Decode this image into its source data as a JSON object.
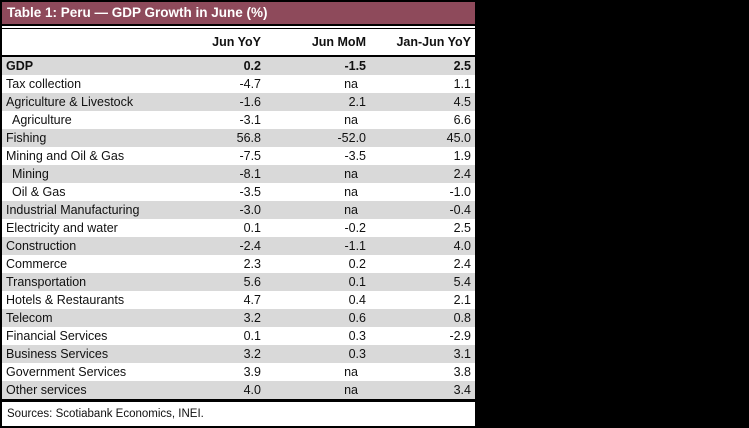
{
  "chart_data": {
    "type": "table",
    "title": "Table 1: Peru — GDP Growth in June (%)",
    "columns": [
      "",
      "Jun YoY",
      "Jun MoM",
      "Jan-Jun YoY"
    ],
    "rows": [
      {
        "label": "GDP",
        "bold": true,
        "indent": false,
        "values": [
          "0.2",
          "-1.5",
          "2.5"
        ]
      },
      {
        "label": "Tax collection",
        "bold": false,
        "indent": false,
        "values": [
          "-4.7",
          "na",
          "1.1"
        ]
      },
      {
        "label": "Agriculture & Livestock",
        "bold": false,
        "indent": false,
        "values": [
          "-1.6",
          "2.1",
          "4.5"
        ]
      },
      {
        "label": "Agriculture",
        "bold": false,
        "indent": true,
        "values": [
          "-3.1",
          "na",
          "6.6"
        ]
      },
      {
        "label": "Fishing",
        "bold": false,
        "indent": false,
        "values": [
          "56.8",
          "-52.0",
          "45.0"
        ]
      },
      {
        "label": "Mining and Oil & Gas",
        "bold": false,
        "indent": false,
        "values": [
          "-7.5",
          "-3.5",
          "1.9"
        ]
      },
      {
        "label": "Mining",
        "bold": false,
        "indent": true,
        "values": [
          "-8.1",
          "na",
          "2.4"
        ]
      },
      {
        "label": "Oil & Gas",
        "bold": false,
        "indent": true,
        "values": [
          "-3.5",
          "na",
          "-1.0"
        ]
      },
      {
        "label": "Industrial Manufacturing",
        "bold": false,
        "indent": false,
        "values": [
          "-3.0",
          "na",
          "-0.4"
        ]
      },
      {
        "label": "Electricity and water",
        "bold": false,
        "indent": false,
        "values": [
          "0.1",
          "-0.2",
          "2.5"
        ]
      },
      {
        "label": "Construction",
        "bold": false,
        "indent": false,
        "values": [
          "-2.4",
          "-1.1",
          "4.0"
        ]
      },
      {
        "label": "Commerce",
        "bold": false,
        "indent": false,
        "values": [
          "2.3",
          "0.2",
          "2.4"
        ]
      },
      {
        "label": "Transportation",
        "bold": false,
        "indent": false,
        "values": [
          "5.6",
          "0.1",
          "5.4"
        ]
      },
      {
        "label": "Hotels & Restaurants",
        "bold": false,
        "indent": false,
        "values": [
          "4.7",
          "0.4",
          "2.1"
        ]
      },
      {
        "label": "Telecom",
        "bold": false,
        "indent": false,
        "values": [
          "3.2",
          "0.6",
          "0.8"
        ]
      },
      {
        "label": "Financial Services",
        "bold": false,
        "indent": false,
        "values": [
          "0.1",
          "0.3",
          "-2.9"
        ]
      },
      {
        "label": "Business Services",
        "bold": false,
        "indent": false,
        "values": [
          "3.2",
          "0.3",
          "3.1"
        ]
      },
      {
        "label": "Government Services",
        "bold": false,
        "indent": false,
        "values": [
          "3.9",
          "na",
          "3.8"
        ]
      },
      {
        "label": "Other services",
        "bold": false,
        "indent": false,
        "values": [
          "4.0",
          "na",
          "3.4"
        ]
      }
    ],
    "footnote": "Sources: Scotiabank Economics, INEI.",
    "layout": {
      "alternating_row_shading": true,
      "first_row_shaded": true
    }
  },
  "colors": {
    "title_bar_bg": "#8E4A5B",
    "title_text": "#FFFFFF",
    "alt_row_bg": "#D9D9D9",
    "body_text": "#111111",
    "border": "#000000",
    "page_bg": "#000000",
    "table_bg": "#FFFFFF"
  }
}
